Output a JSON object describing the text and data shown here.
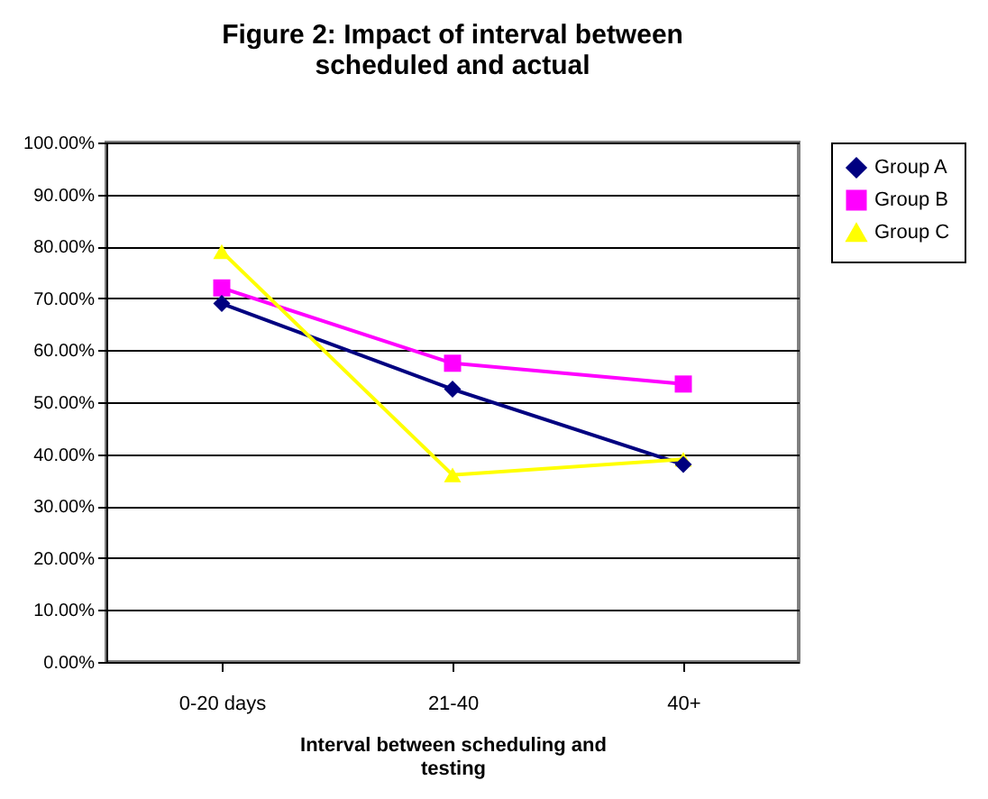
{
  "chart_data": {
    "type": "line",
    "title": "Figure 2: Impact of interval between scheduled and actual",
    "xlabel": "Interval between scheduling and testing",
    "categories": [
      "0-20 days",
      "21-40",
      "40+"
    ],
    "series": [
      {
        "name": "Group A",
        "color": "#000080",
        "marker": "diamond",
        "values": [
          69,
          52.5,
          38
        ]
      },
      {
        "name": "Group B",
        "color": "#ff00ff",
        "marker": "square",
        "values": [
          72,
          57.5,
          53.5
        ]
      },
      {
        "name": "Group C",
        "color": "#ffff00",
        "marker": "triangle",
        "values": [
          79,
          36,
          39
        ]
      }
    ],
    "ylim": [
      0,
      100
    ],
    "yticks": [
      {
        "value": 0,
        "label": "0.00%"
      },
      {
        "value": 10,
        "label": "10.00%"
      },
      {
        "value": 20,
        "label": "20.00%"
      },
      {
        "value": 30,
        "label": "30.00%"
      },
      {
        "value": 40,
        "label": "40.00%"
      },
      {
        "value": 50,
        "label": "50.00%"
      },
      {
        "value": 60,
        "label": "60.00%"
      },
      {
        "value": 70,
        "label": "70.00%"
      },
      {
        "value": 80,
        "label": "80.00%"
      },
      {
        "value": 90,
        "label": "90.00%"
      },
      {
        "value": 100,
        "label": "100.00%"
      }
    ],
    "grid": "y",
    "legend": "right",
    "line_style": "solid"
  }
}
